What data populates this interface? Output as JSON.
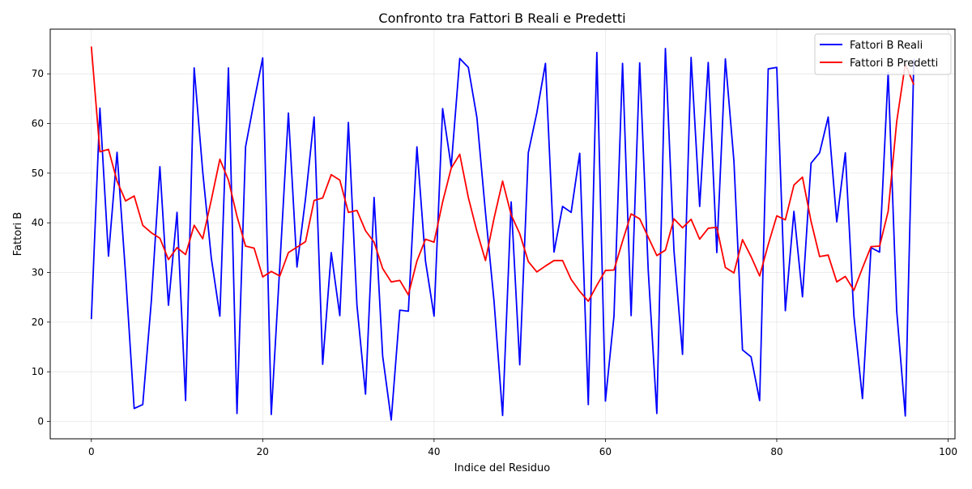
{
  "chart_data": {
    "type": "line",
    "title": "Confronto tra Fattori B Reali e Predetti",
    "xlabel": "Indice del Residuo",
    "ylabel": "Fattori B",
    "xlim": [
      -4.8,
      100.8
    ],
    "ylim": [
      -3.5,
      79
    ],
    "xticks": [
      0,
      20,
      40,
      60,
      80,
      100
    ],
    "yticks": [
      0,
      10,
      20,
      30,
      40,
      50,
      60,
      70
    ],
    "grid": true,
    "legend_position": "top-right",
    "series": [
      {
        "name": "Fattori B Reali",
        "color": "#0000ff",
        "values": [
          20.6,
          63.1,
          33.3,
          54.2,
          29.5,
          2.6,
          3.4,
          24.2,
          51.3,
          23.4,
          42.1,
          4.2,
          71.2,
          50.3,
          32.9,
          21.2,
          71.2,
          1.6,
          55.3,
          64.5,
          73.2,
          1.4,
          31.4,
          62.1,
          31.1,
          44.9,
          61.3,
          11.5,
          34.0,
          21.3,
          60.2,
          23.4,
          5.5,
          45.1,
          13.2,
          0.3,
          22.4,
          22.2,
          55.3,
          32.3,
          21.2,
          63.0,
          51.3,
          73.1,
          71.3,
          61.2,
          42.1,
          24.2,
          1.2,
          44.2,
          11.4,
          54.1,
          62.2,
          72.1,
          34.1,
          43.3,
          42.1,
          54.0,
          3.4,
          74.3,
          4.1,
          21.2,
          72.1,
          21.3,
          72.2,
          30.3,
          1.6,
          75.1,
          34.4,
          13.5,
          73.3,
          43.3,
          72.3,
          34.0,
          73.0,
          52.4,
          14.4,
          13.0,
          4.2,
          71.0,
          71.3,
          22.3,
          42.3,
          25.1,
          52.0,
          54.1,
          61.3,
          40.2,
          54.1,
          21.3,
          4.6,
          35.0,
          34.1,
          70.3,
          22.2,
          1.1,
          73.0
        ]
      },
      {
        "name": "Fattori B Predetti",
        "color": "#ff0000",
        "values": [
          75.5,
          54.3,
          54.8,
          48.4,
          44.4,
          45.4,
          39.5,
          38.0,
          36.9,
          32.6,
          35.0,
          33.6,
          39.5,
          36.8,
          44.6,
          52.8,
          48.6,
          41.3,
          35.3,
          34.9,
          29.1,
          30.2,
          29.3,
          34.0,
          35.1,
          36.2,
          44.5,
          45.0,
          49.7,
          48.6,
          42.1,
          42.5,
          38.4,
          36.1,
          30.8,
          28.1,
          28.4,
          25.5,
          32.3,
          36.7,
          36.1,
          44.2,
          51.0,
          53.8,
          45.1,
          38.3,
          32.4,
          40.9,
          48.4,
          41.6,
          37.8,
          32.2,
          30.1,
          31.3,
          32.4,
          32.4,
          28.6,
          26.2,
          24.2,
          27.4,
          30.4,
          30.5,
          36.3,
          41.8,
          40.8,
          37.1,
          33.4,
          34.5,
          40.8,
          39.0,
          40.7,
          36.7,
          38.9,
          39.1,
          31.0,
          29.9,
          36.6,
          33.2,
          29.3,
          35.6,
          41.4,
          40.6,
          47.6,
          49.2,
          40.3,
          33.2,
          33.5,
          28.1,
          29.2,
          26.4,
          30.9,
          35.2,
          35.3,
          42.3,
          60.4,
          72.0,
          67.8
        ]
      }
    ]
  }
}
